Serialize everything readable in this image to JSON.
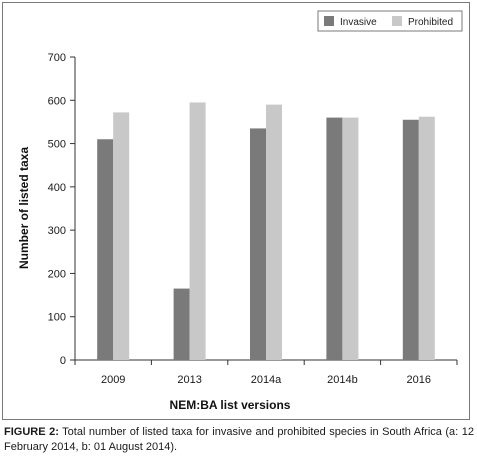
{
  "chart_data": {
    "type": "bar",
    "categories": [
      "2009",
      "2013",
      "2014a",
      "2014b",
      "2016"
    ],
    "series": [
      {
        "name": "Invasive",
        "values": [
          510,
          165,
          535,
          560,
          555
        ]
      },
      {
        "name": "Prohibited",
        "values": [
          572,
          595,
          590,
          560,
          562
        ]
      }
    ],
    "title": "",
    "xlabel": "NEM:BA list versions",
    "ylabel": "Number of listed taxa",
    "ylim": [
      0,
      700
    ],
    "yticks": [
      0,
      100,
      200,
      300,
      400,
      500,
      600,
      700
    ],
    "grid": false,
    "legend": "top-right"
  },
  "colors": {
    "Invasive": "#7a7a7a",
    "Prohibited": "#c8c8c8",
    "axis": "#333333"
  },
  "caption": {
    "label": "FIGURE 2:",
    "text": " Total number of listed taxa for invasive and prohibited species in South Africa (a: 12 February 2014, b: 01 August 2014)."
  }
}
